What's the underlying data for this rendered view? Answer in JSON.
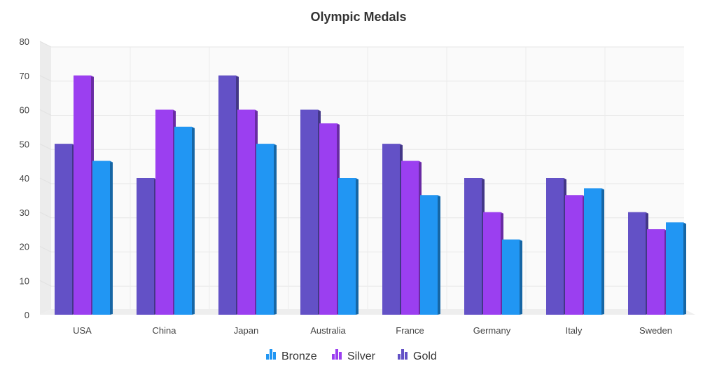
{
  "chart_data": {
    "type": "bar",
    "title": "Olympic Medals",
    "xlabel": "",
    "ylabel": "",
    "categories": [
      "USA",
      "China",
      "Japan",
      "Australia",
      "France",
      "Germany",
      "Italy",
      "Sweden"
    ],
    "ylim": [
      0,
      80
    ],
    "yticks": [
      0,
      10,
      20,
      30,
      40,
      50,
      60,
      70,
      80
    ],
    "grid": true,
    "style": "3d-column",
    "legend_position": "bottom-center",
    "series": [
      {
        "name": "Gold",
        "color": "#6351C6",
        "values": [
          50,
          40,
          70,
          60,
          50,
          40,
          40,
          30
        ]
      },
      {
        "name": "Silver",
        "color": "#9B3FF0",
        "values": [
          70,
          60,
          60,
          56,
          45,
          30,
          35,
          25
        ]
      },
      {
        "name": "Bronze",
        "color": "#2196F3",
        "values": [
          45,
          55,
          50,
          40,
          35,
          22,
          37,
          27
        ]
      }
    ],
    "legend_order": [
      "Bronze",
      "Silver",
      "Gold"
    ]
  }
}
